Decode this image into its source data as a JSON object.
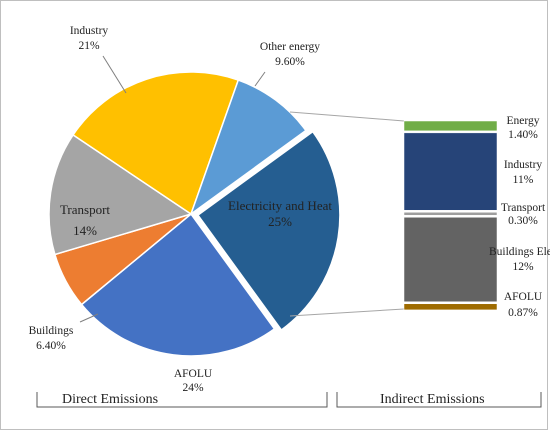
{
  "chart_data": [
    {
      "type": "pie",
      "title": "",
      "slices": [
        {
          "name": "Electricity and Heat",
          "value": 25,
          "label_value": "25%",
          "color": "#255E91"
        },
        {
          "name": "AFOLU",
          "value": 24,
          "label_value": "24%",
          "color": "#4472C4"
        },
        {
          "name": "Buildings",
          "value": 6.4,
          "label_value": "6.40%",
          "color": "#ED7D31"
        },
        {
          "name": "Transport",
          "value": 14,
          "label_value": "14%",
          "color": "#A5A5A5"
        },
        {
          "name": "Industry",
          "value": 21,
          "label_value": "21%",
          "color": "#FFC000"
        },
        {
          "name": "Other energy",
          "value": 9.6,
          "label_value": "9.60%",
          "color": "#5B9BD5"
        }
      ],
      "exploded_slice": "Electricity and Heat"
    },
    {
      "type": "bar",
      "stacked": true,
      "segments": [
        {
          "name": "Energy",
          "value": 1.4,
          "label_value": "1.40%",
          "color": "#70AD47"
        },
        {
          "name": "Industry",
          "value": 11,
          "label_value": "11%",
          "color": "#264478"
        },
        {
          "name": "Transport",
          "value": 0.3,
          "label_value": "0.30%",
          "color": "#9E9E9E"
        },
        {
          "name": "Buildings Elec",
          "value": 12,
          "label_value": "12%",
          "color": "#636363"
        },
        {
          "name": "AFOLU",
          "value": 0.87,
          "label_value": "0.87%",
          "color": "#9E6B00"
        }
      ]
    }
  ],
  "groups": {
    "direct": "Direct Emissions",
    "indirect": "Indirect Emissions"
  }
}
